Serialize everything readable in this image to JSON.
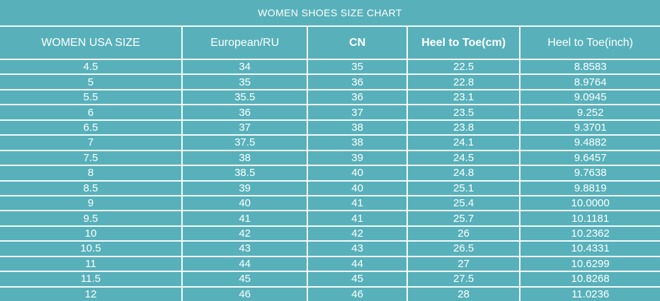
{
  "title": "WOMEN SHOES SIZE CHART",
  "colors": {
    "background": "#58b1ba",
    "text": "#ffffff",
    "grid_lines": "#f6fcfc"
  },
  "chart_data": {
    "type": "table",
    "title": "WOMEN SHOES SIZE CHART",
    "columns": [
      "WOMEN USA SIZE",
      "European/RU",
      "CN",
      "Heel to Toe(cm)",
      "Heel to Toe(inch)"
    ],
    "bold_columns": [
      "CN",
      "Heel to Toe(cm)"
    ],
    "rows": [
      [
        "4.5",
        "34",
        "35",
        "22.5",
        "8.8583"
      ],
      [
        "5",
        "35",
        "36",
        "22.8",
        "8.9764"
      ],
      [
        "5.5",
        "35.5",
        "36",
        "23.1",
        "9.0945"
      ],
      [
        "6",
        "36",
        "37",
        "23.5",
        "9.252"
      ],
      [
        "6.5",
        "37",
        "38",
        "23.8",
        "9.3701"
      ],
      [
        "7",
        "37.5",
        "38",
        "24.1",
        "9.4882"
      ],
      [
        "7.5",
        "38",
        "39",
        "24.5",
        "9.6457"
      ],
      [
        "8",
        "38.5",
        "40",
        "24.8",
        "9.7638"
      ],
      [
        "8.5",
        "39",
        "40",
        "25.1",
        "9.8819"
      ],
      [
        "9",
        "40",
        "41",
        "25.4",
        "10.0000"
      ],
      [
        "9.5",
        "41",
        "41",
        "25.7",
        "10.1181"
      ],
      [
        "10",
        "42",
        "42",
        "26",
        "10.2362"
      ],
      [
        "10.5",
        "43",
        "43",
        "26.5",
        "10.4331"
      ],
      [
        "11",
        "44",
        "44",
        "27",
        "10.6299"
      ],
      [
        "11.5",
        "45",
        "45",
        "27.5",
        "10.8268"
      ],
      [
        "12",
        "46",
        "46",
        "28",
        "11.0236"
      ]
    ]
  }
}
